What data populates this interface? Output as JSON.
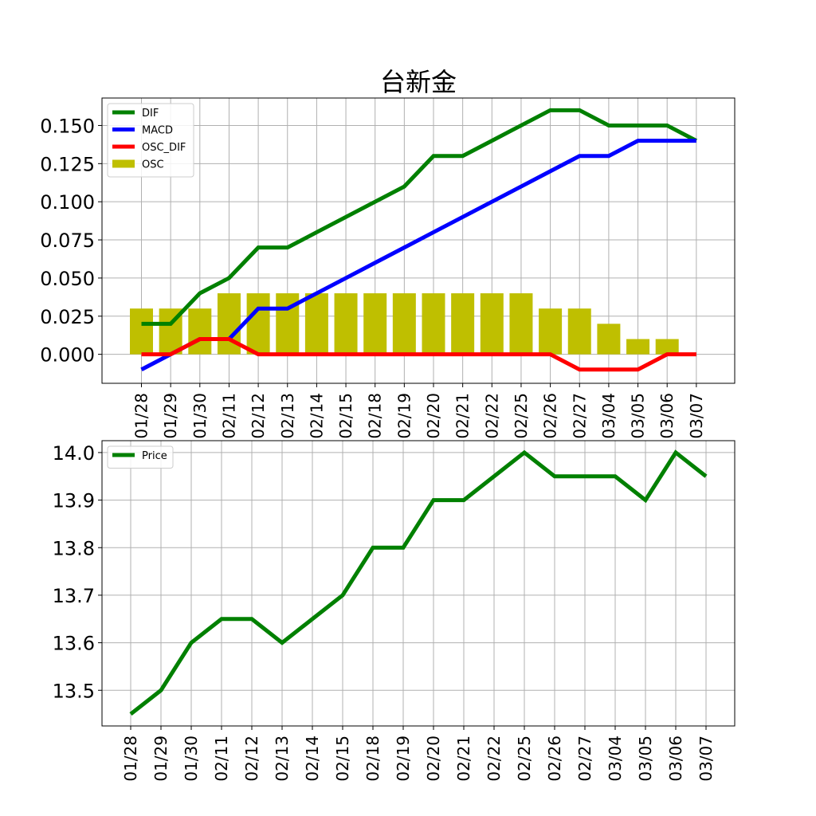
{
  "chart_data": [
    {
      "type": "line+bar",
      "title": "台新金",
      "categories": [
        "01/28",
        "01/29",
        "01/30",
        "02/11",
        "02/12",
        "02/13",
        "02/14",
        "02/15",
        "02/18",
        "02/19",
        "02/20",
        "02/21",
        "02/22",
        "02/25",
        "02/26",
        "02/27",
        "03/04",
        "03/05",
        "03/06",
        "03/07"
      ],
      "yticks": [
        "0.000",
        "0.025",
        "0.050",
        "0.075",
        "0.100",
        "0.125",
        "0.150"
      ],
      "ylim": [
        -0.019,
        0.168
      ],
      "grid": true,
      "legend": "upper-left",
      "series": [
        {
          "name": "DIF",
          "kind": "line",
          "color": "#008000",
          "values": [
            0.02,
            0.02,
            0.04,
            0.05,
            0.07,
            0.07,
            0.08,
            0.09,
            0.1,
            0.11,
            0.13,
            0.13,
            0.14,
            0.15,
            0.16,
            0.16,
            0.15,
            0.15,
            0.15,
            0.14
          ]
        },
        {
          "name": "MACD",
          "kind": "line",
          "color": "#0000ff",
          "values": [
            -0.01,
            0.0,
            0.01,
            0.01,
            0.03,
            0.03,
            0.04,
            0.05,
            0.06,
            0.07,
            0.08,
            0.09,
            0.1,
            0.11,
            0.12,
            0.13,
            0.13,
            0.14,
            0.14,
            0.14
          ]
        },
        {
          "name": "OSC_DIF",
          "kind": "line",
          "color": "#ff0000",
          "values": [
            0.0,
            0.0,
            0.01,
            0.01,
            0.0,
            0.0,
            0.0,
            0.0,
            0.0,
            0.0,
            0.0,
            0.0,
            0.0,
            0.0,
            0.0,
            -0.01,
            -0.01,
            -0.01,
            0.0,
            0.0
          ]
        },
        {
          "name": "OSC",
          "kind": "bar",
          "color": "#bfbf00",
          "values": [
            0.03,
            0.03,
            0.03,
            0.04,
            0.04,
            0.04,
            0.04,
            0.04,
            0.04,
            0.04,
            0.04,
            0.04,
            0.04,
            0.04,
            0.03,
            0.03,
            0.02,
            0.01,
            0.01,
            0.0
          ]
        }
      ]
    },
    {
      "type": "line",
      "categories": [
        "01/28",
        "01/29",
        "01/30",
        "02/11",
        "02/12",
        "02/13",
        "02/14",
        "02/15",
        "02/18",
        "02/19",
        "02/20",
        "02/21",
        "02/22",
        "02/25",
        "02/26",
        "02/27",
        "03/04",
        "03/05",
        "03/06",
        "03/07"
      ],
      "yticks": [
        "13.5",
        "13.6",
        "13.7",
        "13.8",
        "13.9",
        "14.0"
      ],
      "ylim": [
        13.425,
        14.025
      ],
      "grid": true,
      "legend": "upper-left",
      "series": [
        {
          "name": "Price",
          "kind": "line",
          "color": "#008000",
          "values": [
            13.45,
            13.5,
            13.6,
            13.65,
            13.65,
            13.6,
            13.65,
            13.7,
            13.8,
            13.8,
            13.9,
            13.9,
            13.95,
            14.0,
            13.95,
            13.95,
            13.95,
            13.9,
            14.0,
            13.95
          ]
        }
      ]
    }
  ]
}
